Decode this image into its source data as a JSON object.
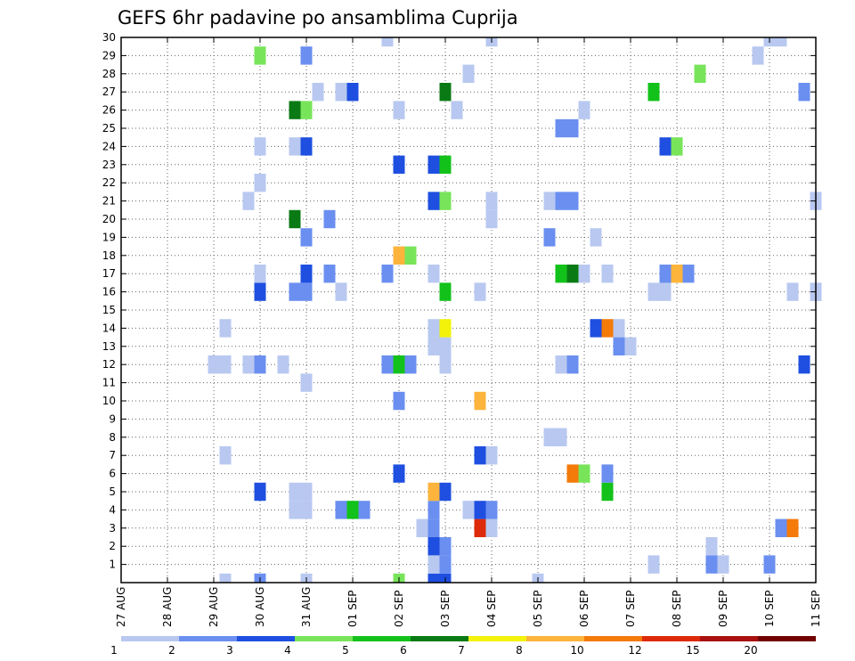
{
  "chart_data": {
    "type": "heatmap",
    "title": "GEFS 6hr padavine po ansamblima Cuprija",
    "xlabel": "",
    "ylabel": "",
    "x_ticks": [
      "27 AUG",
      "28 AUG",
      "29 AUG",
      "30 AUG",
      "31 AUG",
      "01 SEP",
      "02 SEP",
      "03 SEP",
      "04 SEP",
      "05 SEP",
      "06 SEP",
      "07 SEP",
      "08 SEP",
      "09 SEP",
      "10 SEP",
      "11 SEP"
    ],
    "y_ticks": [
      "1",
      "2",
      "3",
      "4",
      "5",
      "6",
      "7",
      "8",
      "9",
      "10",
      "11",
      "12",
      "13",
      "14",
      "15",
      "16",
      "17",
      "18",
      "19",
      "20",
      "21",
      "22",
      "23",
      "24",
      "25",
      "26",
      "27",
      "28",
      "29",
      "30"
    ],
    "grid": true,
    "colorbar": {
      "labels": [
        "1",
        "2",
        "3",
        "4",
        "5",
        "6",
        "7",
        "8",
        "10",
        "12",
        "15",
        "20"
      ],
      "colors": [
        "#b8c8f0",
        "#6a8ff0",
        "#1e4fe0",
        "#78e45a",
        "#12c21a",
        "#0a7a14",
        "#f2f20a",
        "#fcb43c",
        "#f47a0a",
        "#dc2a0a",
        "#aa1010",
        "#720000"
      ]
    },
    "cells": [
      {
        "day": 2.25,
        "member": 0,
        "value": 1
      },
      {
        "day": 3.0,
        "member": 0,
        "value": 2
      },
      {
        "day": 4.0,
        "member": 0,
        "value": 1
      },
      {
        "day": 6.0,
        "member": 0,
        "value": 4
      },
      {
        "day": 6.75,
        "member": 0,
        "value": 3
      },
      {
        "day": 7.0,
        "member": 0,
        "value": 3
      },
      {
        "day": 9.0,
        "member": 0,
        "value": 1
      },
      {
        "day": 6.75,
        "member": 1,
        "value": 1
      },
      {
        "day": 7.0,
        "member": 1,
        "value": 2
      },
      {
        "day": 11.5,
        "member": 1,
        "value": 1
      },
      {
        "day": 12.75,
        "member": 1,
        "value": 2
      },
      {
        "day": 13.0,
        "member": 1,
        "value": 1
      },
      {
        "day": 14.0,
        "member": 1,
        "value": 2
      },
      {
        "day": 6.75,
        "member": 2,
        "value": 3
      },
      {
        "day": 7.0,
        "member": 2,
        "value": 2
      },
      {
        "day": 12.75,
        "member": 2,
        "value": 1
      },
      {
        "day": 6.5,
        "member": 3,
        "value": 1
      },
      {
        "day": 6.75,
        "member": 3,
        "value": 2
      },
      {
        "day": 7.75,
        "member": 3,
        "value": 12
      },
      {
        "day": 8.0,
        "member": 3,
        "value": 1
      },
      {
        "day": 14.25,
        "member": 3,
        "value": 2
      },
      {
        "day": 14.5,
        "member": 3,
        "value": 10
      },
      {
        "day": 3.75,
        "member": 4,
        "value": 1
      },
      {
        "day": 4.0,
        "member": 4,
        "value": 1
      },
      {
        "day": 4.75,
        "member": 4,
        "value": 2
      },
      {
        "day": 5.0,
        "member": 4,
        "value": 5
      },
      {
        "day": 5.25,
        "member": 4,
        "value": 2
      },
      {
        "day": 6.75,
        "member": 4,
        "value": 2
      },
      {
        "day": 7.5,
        "member": 4,
        "value": 1
      },
      {
        "day": 7.75,
        "member": 4,
        "value": 3
      },
      {
        "day": 8.0,
        "member": 4,
        "value": 2
      },
      {
        "day": 3.0,
        "member": 5,
        "value": 3
      },
      {
        "day": 3.75,
        "member": 5,
        "value": 1
      },
      {
        "day": 4.0,
        "member": 5,
        "value": 1
      },
      {
        "day": 6.75,
        "member": 5,
        "value": 8
      },
      {
        "day": 7.0,
        "member": 5,
        "value": 3
      },
      {
        "day": 10.5,
        "member": 5,
        "value": 5
      },
      {
        "day": 6.0,
        "member": 6,
        "value": 3
      },
      {
        "day": 9.75,
        "member": 6,
        "value": 10
      },
      {
        "day": 10.0,
        "member": 6,
        "value": 4
      },
      {
        "day": 10.5,
        "member": 6,
        "value": 2
      },
      {
        "day": 2.25,
        "member": 7,
        "value": 1
      },
      {
        "day": 7.75,
        "member": 7,
        "value": 3
      },
      {
        "day": 8.0,
        "member": 7,
        "value": 1
      },
      {
        "day": 9.25,
        "member": 8,
        "value": 1
      },
      {
        "day": 9.5,
        "member": 8,
        "value": 1
      },
      {
        "day": 6.0,
        "member": 10,
        "value": 2
      },
      {
        "day": 7.75,
        "member": 10,
        "value": 8
      },
      {
        "day": 4.0,
        "member": 11,
        "value": 1
      },
      {
        "day": 2.0,
        "member": 12,
        "value": 1
      },
      {
        "day": 2.25,
        "member": 12,
        "value": 1
      },
      {
        "day": 2.75,
        "member": 12,
        "value": 1
      },
      {
        "day": 3.0,
        "member": 12,
        "value": 2
      },
      {
        "day": 3.5,
        "member": 12,
        "value": 1
      },
      {
        "day": 5.75,
        "member": 12,
        "value": 2
      },
      {
        "day": 6.0,
        "member": 12,
        "value": 5
      },
      {
        "day": 6.25,
        "member": 12,
        "value": 2
      },
      {
        "day": 7.0,
        "member": 12,
        "value": 1
      },
      {
        "day": 9.5,
        "member": 12,
        "value": 1
      },
      {
        "day": 9.75,
        "member": 12,
        "value": 2
      },
      {
        "day": 14.75,
        "member": 12,
        "value": 3
      },
      {
        "day": 6.75,
        "member": 13,
        "value": 1
      },
      {
        "day": 7.0,
        "member": 13,
        "value": 1
      },
      {
        "day": 10.75,
        "member": 13,
        "value": 2
      },
      {
        "day": 11.0,
        "member": 13,
        "value": 1
      },
      {
        "day": 2.25,
        "member": 14,
        "value": 1
      },
      {
        "day": 6.75,
        "member": 14,
        "value": 1
      },
      {
        "day": 7.0,
        "member": 14,
        "value": 7
      },
      {
        "day": 10.25,
        "member": 14,
        "value": 3
      },
      {
        "day": 10.5,
        "member": 14,
        "value": 10
      },
      {
        "day": 10.75,
        "member": 14,
        "value": 1
      },
      {
        "day": 3.0,
        "member": 16,
        "value": 3
      },
      {
        "day": 3.75,
        "member": 16,
        "value": 2
      },
      {
        "day": 4.0,
        "member": 16,
        "value": 2
      },
      {
        "day": 4.75,
        "member": 16,
        "value": 1
      },
      {
        "day": 7.0,
        "member": 16,
        "value": 5
      },
      {
        "day": 7.75,
        "member": 16,
        "value": 1
      },
      {
        "day": 11.5,
        "member": 16,
        "value": 1
      },
      {
        "day": 14.5,
        "member": 16,
        "value": 1
      },
      {
        "day": 15.0,
        "member": 16,
        "value": 1
      },
      {
        "day": 3.0,
        "member": 17,
        "value": 1
      },
      {
        "day": 4.0,
        "member": 17,
        "value": 3
      },
      {
        "day": 4.5,
        "member": 17,
        "value": 2
      },
      {
        "day": 5.75,
        "member": 17,
        "value": 2
      },
      {
        "day": 6.75,
        "member": 17,
        "value": 1
      },
      {
        "day": 10.5,
        "member": 17,
        "value": 1
      },
      {
        "day": 11.75,
        "member": 17,
        "value": 1
      },
      {
        "day": 11.75,
        "member": 16,
        "value": 1
      },
      {
        "day": 15.0,
        "member": 16,
        "value": 1
      },
      {
        "day": 9.5,
        "member": 17,
        "value": 5
      },
      {
        "day": 9.75,
        "member": 17,
        "value": 6
      },
      {
        "day": 10.0,
        "member": 17,
        "value": 1
      },
      {
        "day": 11.75,
        "member": 17,
        "value": 2
      },
      {
        "day": 12.0,
        "member": 17,
        "value": 8
      },
      {
        "day": 12.25,
        "member": 17,
        "value": 2
      },
      {
        "day": 6.0,
        "member": 18,
        "value": 8
      },
      {
        "day": 6.25,
        "member": 18,
        "value": 4
      },
      {
        "day": 4.0,
        "member": 19,
        "value": 2
      },
      {
        "day": 9.25,
        "member": 19,
        "value": 2
      },
      {
        "day": 10.25,
        "member": 19,
        "value": 1
      },
      {
        "day": 3.75,
        "member": 20,
        "value": 6
      },
      {
        "day": 4.5,
        "member": 20,
        "value": 2
      },
      {
        "day": 8.0,
        "member": 20,
        "value": 1
      },
      {
        "day": 2.75,
        "member": 21,
        "value": 1
      },
      {
        "day": 6.75,
        "member": 21,
        "value": 3
      },
      {
        "day": 7.0,
        "member": 21,
        "value": 4
      },
      {
        "day": 8.0,
        "member": 21,
        "value": 1
      },
      {
        "day": 9.25,
        "member": 21,
        "value": 1
      },
      {
        "day": 9.5,
        "member": 21,
        "value": 2
      },
      {
        "day": 9.75,
        "member": 21,
        "value": 2
      },
      {
        "day": 15.0,
        "member": 21,
        "value": 1
      },
      {
        "day": 3.0,
        "member": 22,
        "value": 1
      },
      {
        "day": 6.0,
        "member": 23,
        "value": 3
      },
      {
        "day": 6.75,
        "member": 23,
        "value": 3
      },
      {
        "day": 7.0,
        "member": 23,
        "value": 5
      },
      {
        "day": 3.0,
        "member": 24,
        "value": 1
      },
      {
        "day": 3.75,
        "member": 24,
        "value": 1
      },
      {
        "day": 4.0,
        "member": 24,
        "value": 3
      },
      {
        "day": 11.75,
        "member": 24,
        "value": 3
      },
      {
        "day": 12.0,
        "member": 24,
        "value": 4
      },
      {
        "day": 9.5,
        "member": 25,
        "value": 2
      },
      {
        "day": 9.75,
        "member": 25,
        "value": 2
      },
      {
        "day": 3.75,
        "member": 26,
        "value": 6
      },
      {
        "day": 4.0,
        "member": 26,
        "value": 4
      },
      {
        "day": 6.0,
        "member": 26,
        "value": 1
      },
      {
        "day": 7.25,
        "member": 26,
        "value": 1
      },
      {
        "day": 10.0,
        "member": 26,
        "value": 1
      },
      {
        "day": 4.25,
        "member": 27,
        "value": 1
      },
      {
        "day": 4.75,
        "member": 27,
        "value": 1
      },
      {
        "day": 5.0,
        "member": 27,
        "value": 3
      },
      {
        "day": 7.0,
        "member": 27,
        "value": 6
      },
      {
        "day": 11.5,
        "member": 27,
        "value": 5
      },
      {
        "day": 14.75,
        "member": 27,
        "value": 2
      },
      {
        "day": 7.5,
        "member": 28,
        "value": 1
      },
      {
        "day": 12.5,
        "member": 28,
        "value": 4
      },
      {
        "day": 3.0,
        "member": 29,
        "value": 4
      },
      {
        "day": 4.0,
        "member": 29,
        "value": 2
      },
      {
        "day": 13.75,
        "member": 29,
        "value": 1
      },
      {
        "day": 5.75,
        "member": 30,
        "value": 1
      },
      {
        "day": 8.0,
        "member": 30,
        "value": 1
      },
      {
        "day": 14.0,
        "member": 30,
        "value": 1
      },
      {
        "day": 14.25,
        "member": 30,
        "value": 1
      }
    ]
  }
}
